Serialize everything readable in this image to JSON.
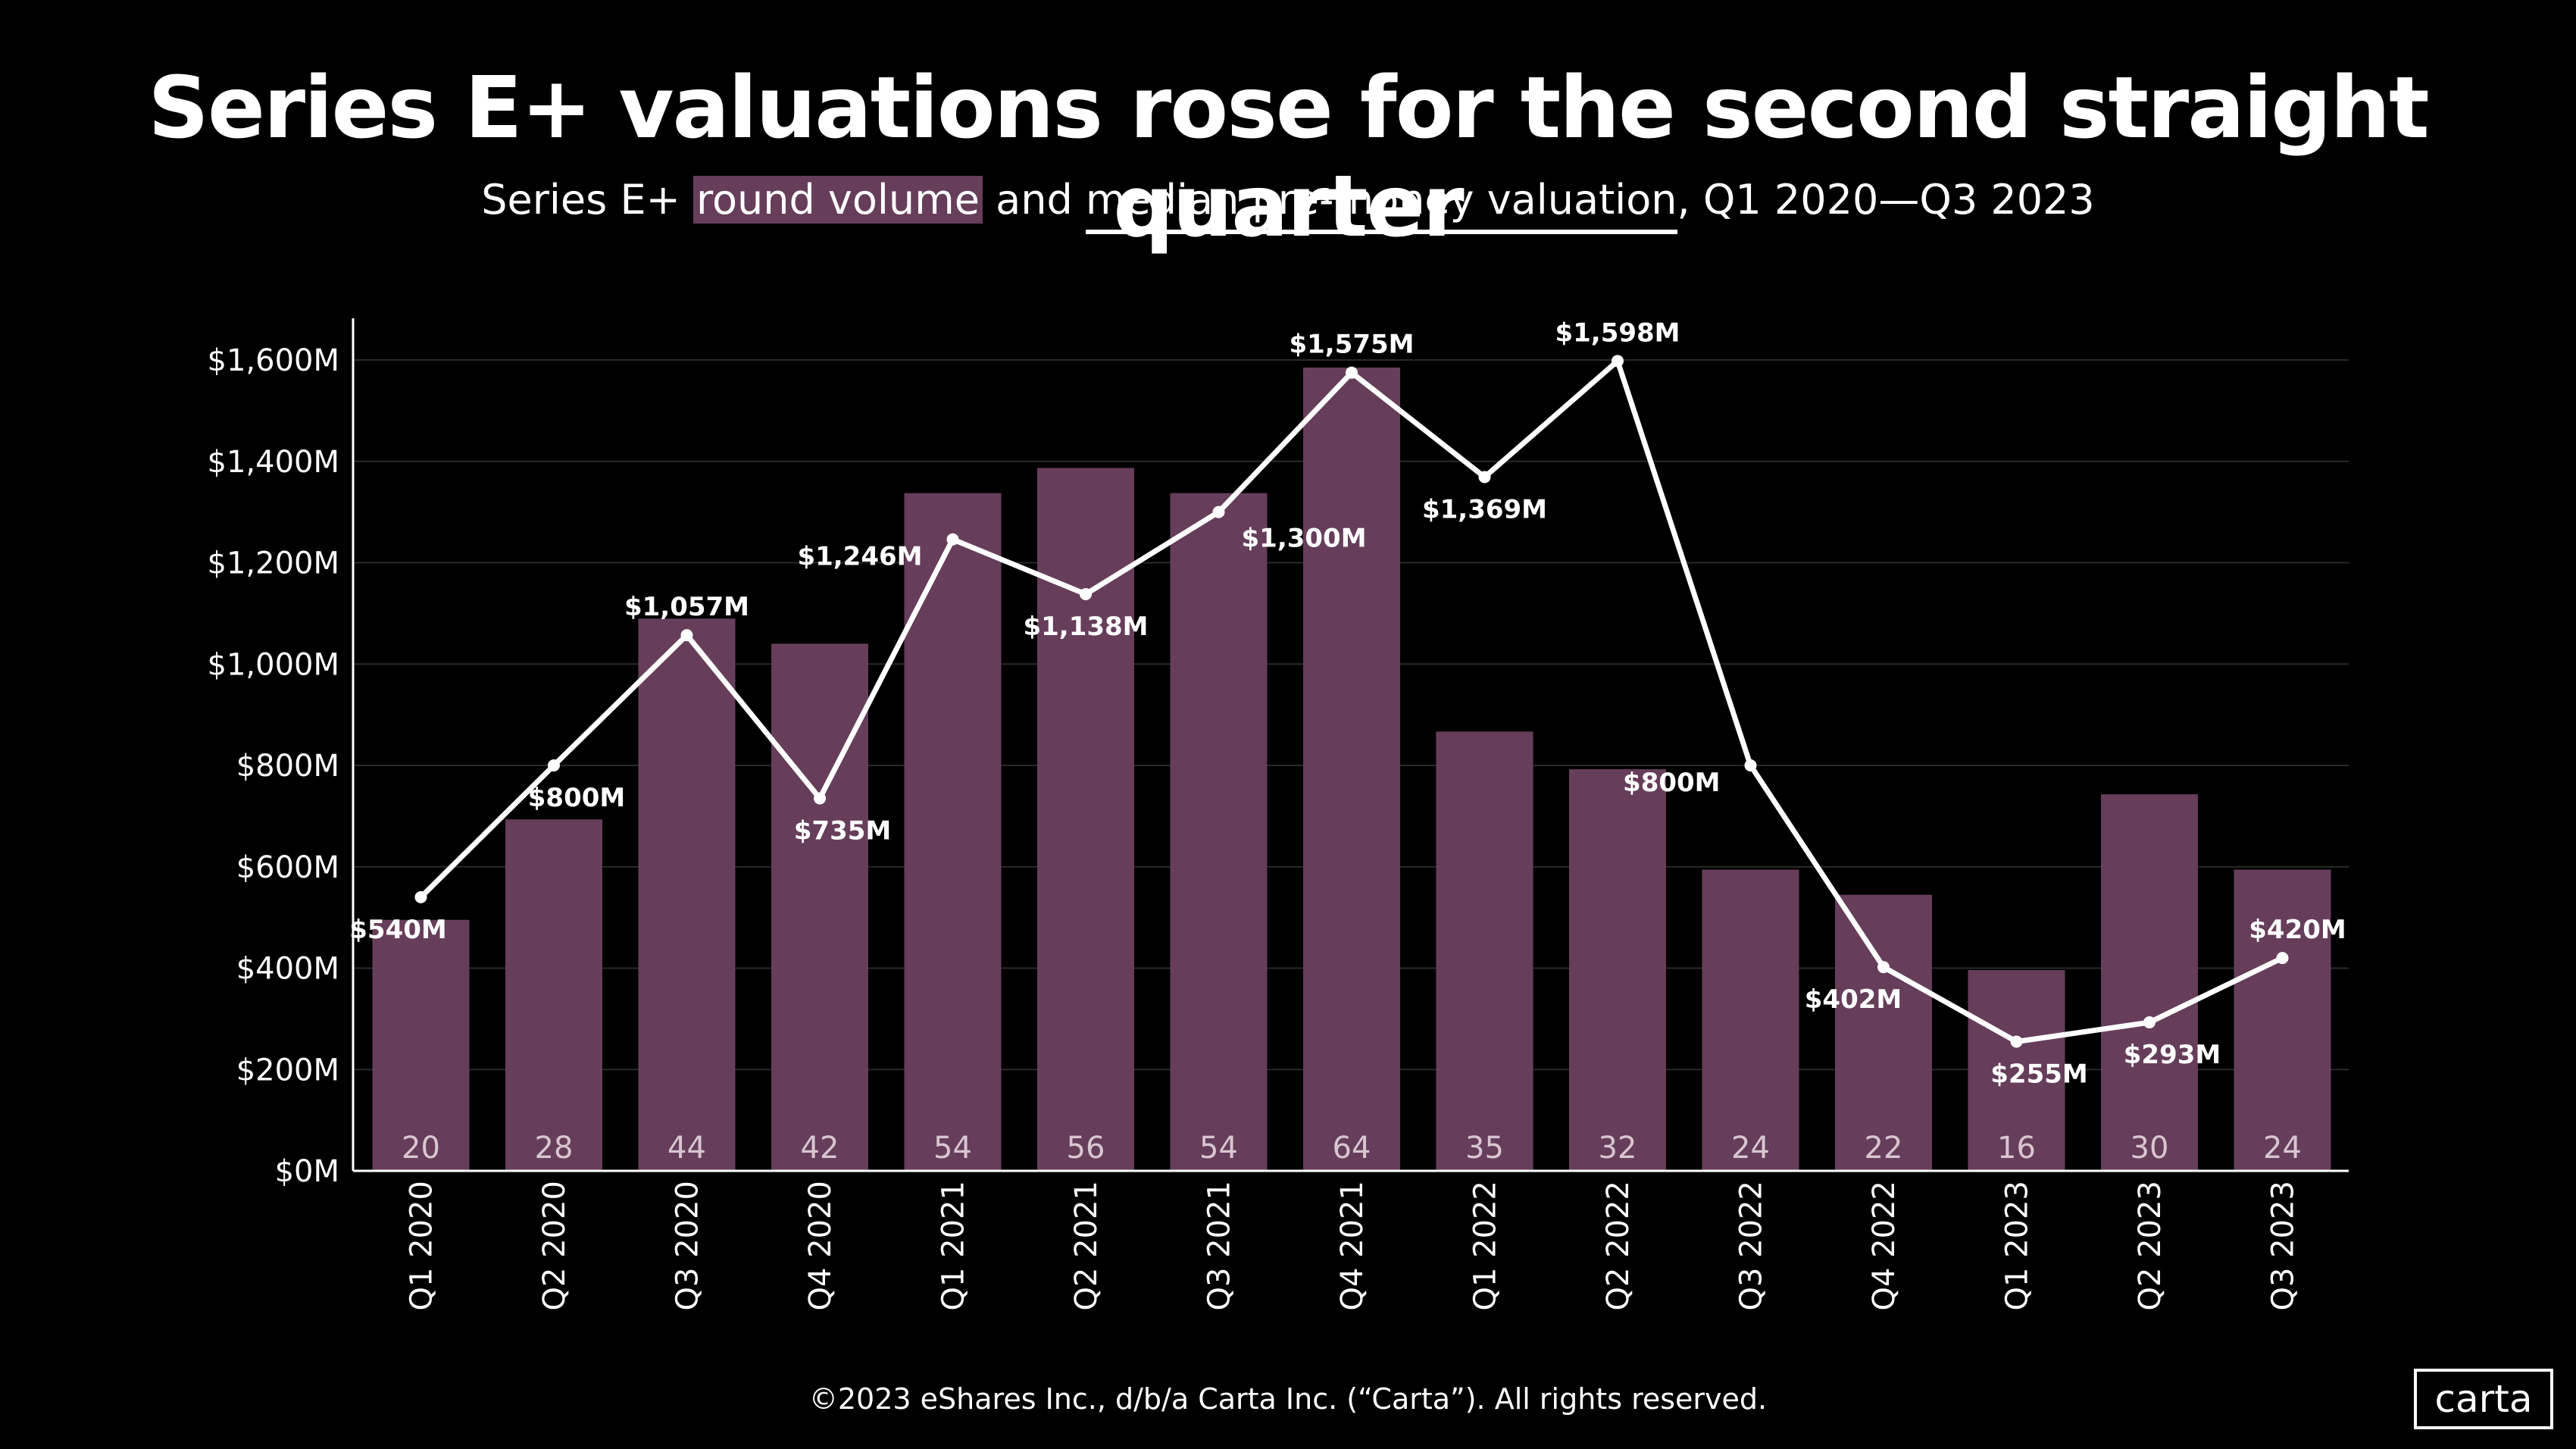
{
  "title": "Series E+ valuations rose for the second straight quarter",
  "subtitle": {
    "prefix": "Series E+ ",
    "series1": "round volume",
    "middle": " and ",
    "series2": "median pre-money valuation",
    "suffix": ", Q1 2020—Q3 2023"
  },
  "footer": "©2023 eShares Inc., d/b/a Carta Inc. (“Carta”). All rights reserved.",
  "logo": "carta",
  "colors": {
    "bar": "#663e5a",
    "line": "#ffffff",
    "background": "#000000",
    "gridline": "#2a2a2a"
  },
  "chart_data": {
    "type": "bar+line",
    "title": "Series E+ valuations rose for the second straight quarter",
    "categories": [
      "Q1 2020",
      "Q2 2020",
      "Q3 2020",
      "Q4 2020",
      "Q1 2021",
      "Q2 2021",
      "Q3 2021",
      "Q4 2021",
      "Q1 2022",
      "Q2 2022",
      "Q3 2022",
      "Q4 2022",
      "Q1 2023",
      "Q2 2023",
      "Q3 2023"
    ],
    "y_ticks": [
      "$0M",
      "$200M",
      "$400M",
      "$600M",
      "$800M",
      "$1,000M",
      "$1,200M",
      "$1,400M",
      "$1,600M"
    ],
    "ylim": [
      0,
      1600
    ],
    "series": [
      {
        "name": "round volume",
        "type": "bar",
        "values": [
          20,
          28,
          44,
          42,
          54,
          56,
          54,
          64,
          35,
          32,
          24,
          22,
          16,
          30,
          24
        ],
        "labels": [
          "20",
          "28",
          "44",
          "42",
          "54",
          "56",
          "54",
          "64",
          "35",
          "32",
          "24",
          "22",
          "16",
          "30",
          "24"
        ],
        "scale_max": 64
      },
      {
        "name": "median pre-money valuation",
        "type": "line",
        "values": [
          540,
          800,
          1057,
          735,
          1246,
          1138,
          1300,
          1575,
          1369,
          1598,
          800,
          402,
          255,
          293,
          420
        ],
        "labels": [
          "$540M",
          "$800M",
          "$1,057M",
          "$735M",
          "$1,246M",
          "$1,138M",
          "$1,300M",
          "$1,575M",
          "$1,369M",
          "$1,598M",
          "$800M",
          "$402M",
          "$255M",
          "$293M",
          "$420M"
        ],
        "label_positions": [
          "below",
          "below",
          "above",
          "below",
          "left",
          "below",
          "right",
          "above",
          "below",
          "above",
          "left",
          "below",
          "below",
          "below",
          "above"
        ]
      }
    ]
  }
}
